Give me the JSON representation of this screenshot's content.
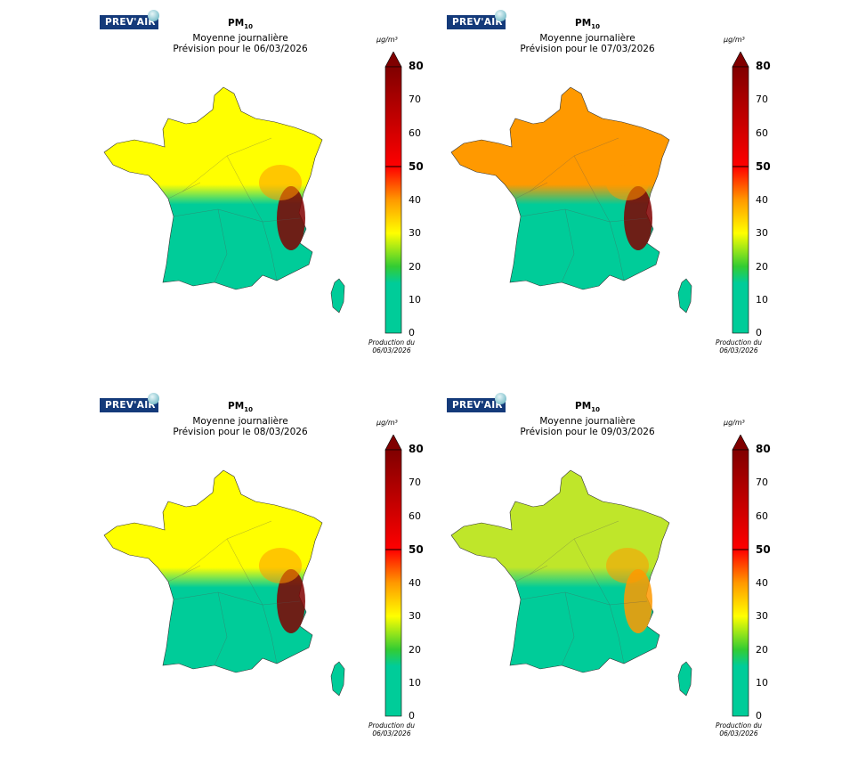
{
  "brand": "PREV'AIR",
  "unit": "µg/m³",
  "pollutant_main": "PM",
  "pollutant_sub": "10",
  "subtitle": "Moyenne journalière",
  "production_line1": "Production du",
  "production_line2": "06/03/2026",
  "colorbar_ticks": [
    "80",
    "70",
    "60",
    "50",
    "40",
    "30",
    "20",
    "10",
    "0"
  ],
  "colorbar_colors": {
    "0": "#00cc99",
    "15": "#00cc99",
    "20": "#33cc33",
    "30": "#ffff00",
    "40": "#ff9900",
    "50": "#ff0000",
    "80": "#800000"
  },
  "panels": [
    {
      "date_line": "Prévision pour le 06/03/2026",
      "north_level": "yellow",
      "east_level": "dark-red",
      "south_level": "teal"
    },
    {
      "date_line": "Prévision pour le 07/03/2026",
      "north_level": "orange",
      "east_level": "dark-red",
      "south_level": "teal"
    },
    {
      "date_line": "Prévision pour le 08/03/2026",
      "north_level": "yellow",
      "east_level": "dark-red",
      "south_level": "teal"
    },
    {
      "date_line": "Prévision pour le 09/03/2026",
      "north_level": "green-yellow",
      "east_level": "orange",
      "south_level": "teal"
    }
  ]
}
